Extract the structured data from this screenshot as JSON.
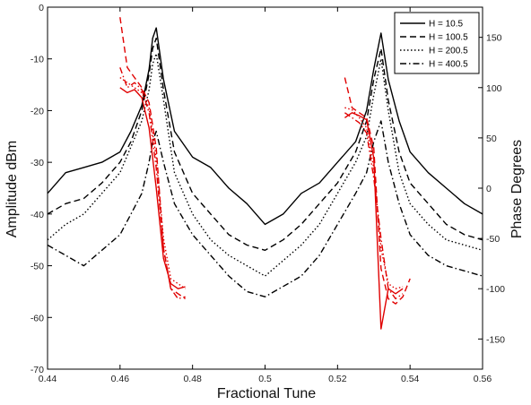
{
  "chart_data": {
    "type": "line",
    "xlabel": "Fractional Tune",
    "ylabel": "Amplitude dBm",
    "ylabel_right": "Phase Degrees",
    "xlim": [
      0.44,
      0.56
    ],
    "ylim": [
      -70,
      0
    ],
    "ylim_right": [
      -180,
      180
    ],
    "x_ticks": [
      "0.44",
      "0.46",
      "0.48",
      "0.5",
      "0.52",
      "0.54",
      "0.56"
    ],
    "y_ticks": [
      "0",
      "-10",
      "-20",
      "-30",
      "-40",
      "-50",
      "-60",
      "-70"
    ],
    "y_ticks_right": [
      "150",
      "100",
      "50",
      "0",
      "-50",
      "-100",
      "-150"
    ],
    "legend_position": "top-right",
    "amplitude_series": [
      {
        "name": "H = 10.5",
        "style": "solid",
        "color": "#000000",
        "x": [
          0.44,
          0.445,
          0.45,
          0.455,
          0.46,
          0.463,
          0.466,
          0.468,
          0.469,
          0.47,
          0.472,
          0.475,
          0.48,
          0.485,
          0.49,
          0.495,
          0.5,
          0.505,
          0.51,
          0.515,
          0.52,
          0.525,
          0.528,
          0.53,
          0.532,
          0.534,
          0.537,
          0.54,
          0.545,
          0.55,
          0.555,
          0.56
        ],
        "y": [
          -36,
          -32,
          -31,
          -30,
          -28,
          -24,
          -19,
          -12,
          -6,
          -4,
          -14,
          -24,
          -29,
          -31,
          -35,
          -38,
          -42,
          -40,
          -36,
          -34,
          -30,
          -26,
          -20,
          -12,
          -5,
          -14,
          -22,
          -28,
          -32,
          -35,
          -38,
          -40
        ]
      },
      {
        "name": "H = 100.5",
        "style": "dashed",
        "color": "#000000",
        "x": [
          0.44,
          0.445,
          0.45,
          0.455,
          0.46,
          0.463,
          0.466,
          0.468,
          0.469,
          0.47,
          0.472,
          0.475,
          0.48,
          0.485,
          0.49,
          0.495,
          0.5,
          0.505,
          0.51,
          0.515,
          0.52,
          0.525,
          0.528,
          0.53,
          0.532,
          0.534,
          0.537,
          0.54,
          0.545,
          0.55,
          0.555,
          0.56
        ],
        "y": [
          -40,
          -38,
          -37,
          -34,
          -30,
          -26,
          -20,
          -13,
          -8,
          -6,
          -16,
          -28,
          -36,
          -40,
          -44,
          -46,
          -47,
          -45,
          -42,
          -38,
          -34,
          -28,
          -22,
          -14,
          -8,
          -18,
          -28,
          -34,
          -38,
          -42,
          -44,
          -45
        ]
      },
      {
        "name": "H = 200.5",
        "style": "dotted",
        "color": "#000000",
        "x": [
          0.44,
          0.445,
          0.45,
          0.455,
          0.46,
          0.463,
          0.466,
          0.468,
          0.469,
          0.47,
          0.472,
          0.475,
          0.48,
          0.485,
          0.49,
          0.495,
          0.5,
          0.505,
          0.51,
          0.515,
          0.52,
          0.525,
          0.528,
          0.53,
          0.532,
          0.534,
          0.537,
          0.54,
          0.545,
          0.55,
          0.555,
          0.56
        ],
        "y": [
          -45,
          -42,
          -40,
          -36,
          -32,
          -27,
          -22,
          -16,
          -11,
          -9,
          -18,
          -32,
          -40,
          -45,
          -48,
          -50,
          -52,
          -49,
          -46,
          -42,
          -36,
          -30,
          -25,
          -17,
          -10,
          -20,
          -32,
          -38,
          -42,
          -45,
          -46,
          -47
        ]
      },
      {
        "name": "H = 400.5",
        "style": "dashdot",
        "color": "#000000",
        "x": [
          0.44,
          0.445,
          0.45,
          0.455,
          0.46,
          0.463,
          0.466,
          0.468,
          0.469,
          0.47,
          0.472,
          0.475,
          0.48,
          0.485,
          0.49,
          0.495,
          0.5,
          0.505,
          0.51,
          0.515,
          0.52,
          0.525,
          0.528,
          0.53,
          0.532,
          0.534,
          0.537,
          0.54,
          0.545,
          0.55,
          0.555,
          0.56
        ],
        "y": [
          -46,
          -48,
          -50,
          -47,
          -44,
          -40,
          -36,
          -30,
          -26,
          -24,
          -30,
          -38,
          -44,
          -48,
          -52,
          -55,
          -56,
          -54,
          -52,
          -48,
          -42,
          -36,
          -32,
          -26,
          -22,
          -30,
          -38,
          -44,
          -48,
          -50,
          -51,
          -52
        ]
      }
    ],
    "phase_series": [
      {
        "name": "Phase H = 10.5",
        "axis": "right",
        "style": "solid",
        "color": "#e00000",
        "x": [
          0.46,
          0.462,
          0.464,
          0.466,
          0.468,
          0.47,
          0.472,
          0.474,
          0.476,
          0.478
        ],
        "y": [
          100,
          95,
          98,
          90,
          60,
          0,
          -70,
          -95,
          -100,
          -98
        ]
      },
      {
        "name": "Phase H = 100.5",
        "axis": "right",
        "style": "dashed",
        "color": "#e00000",
        "x": [
          0.46,
          0.462,
          0.464,
          0.466,
          0.468,
          0.47,
          0.472,
          0.474,
          0.476,
          0.478
        ],
        "y": [
          170,
          120,
          110,
          100,
          85,
          40,
          -60,
          -100,
          -105,
          -110
        ]
      },
      {
        "name": "Phase H = 200.5",
        "axis": "right",
        "style": "dotted",
        "color": "#e00000",
        "x": [
          0.46,
          0.462,
          0.464,
          0.466,
          0.468,
          0.47,
          0.472,
          0.474,
          0.476,
          0.478
        ],
        "y": [
          110,
          105,
          100,
          95,
          80,
          30,
          -50,
          -90,
          -95,
          -100
        ]
      },
      {
        "name": "Phase H = 400.5",
        "axis": "right",
        "style": "dashdot",
        "color": "#e00000",
        "x": [
          0.46,
          0.462,
          0.464,
          0.466,
          0.468,
          0.47,
          0.472,
          0.474,
          0.476,
          0.478
        ],
        "y": [
          120,
          100,
          105,
          98,
          75,
          20,
          -60,
          -100,
          -110,
          -108
        ]
      },
      {
        "name": "Phase H = 10.5 (second resonance)",
        "axis": "right",
        "style": "solid",
        "color": "#e00000",
        "x": [
          0.522,
          0.524,
          0.526,
          0.528,
          0.53,
          0.532,
          0.534,
          0.536,
          0.538
        ],
        "y": [
          70,
          75,
          72,
          68,
          30,
          -140,
          -100,
          -105,
          -100
        ]
      },
      {
        "name": "Phase H = 100.5 (second resonance)",
        "axis": "right",
        "style": "dashed",
        "color": "#e00000",
        "x": [
          0.522,
          0.524,
          0.526,
          0.528,
          0.53,
          0.532,
          0.534,
          0.536,
          0.538,
          0.54
        ],
        "y": [
          110,
          80,
          75,
          70,
          40,
          -80,
          -110,
          -115,
          -108,
          -90
        ]
      },
      {
        "name": "Phase H = 200.5 (second resonance)",
        "axis": "right",
        "style": "dotted",
        "color": "#e00000",
        "x": [
          0.522,
          0.524,
          0.526,
          0.528,
          0.53,
          0.532,
          0.534,
          0.536,
          0.538
        ],
        "y": [
          80,
          78,
          70,
          60,
          20,
          -60,
          -95,
          -100,
          -98
        ]
      },
      {
        "name": "Phase H = 400.5 (second resonance)",
        "axis": "right",
        "style": "dashdot",
        "color": "#e00000",
        "x": [
          0.522,
          0.524,
          0.526,
          0.528,
          0.53,
          0.532,
          0.534,
          0.536,
          0.538
        ],
        "y": [
          75,
          70,
          65,
          55,
          10,
          -50,
          -100,
          -110,
          -105
        ]
      }
    ],
    "legend": [
      "H = 10.5",
      "H = 100.5",
      "H = 200.5",
      "H = 400.5"
    ]
  }
}
